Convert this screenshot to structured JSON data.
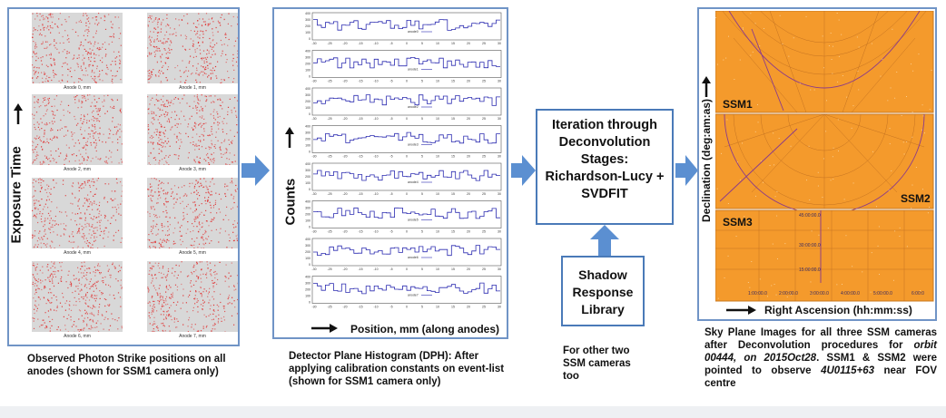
{
  "panel1": {
    "ylabel": "Exposure Time",
    "anodes": [
      "Anode 0, mm",
      "Anode 1, mm",
      "Anode 2, mm",
      "Anode 3, mm",
      "Anode 4, mm",
      "Anode 5, mm",
      "Anode 6, mm",
      "Anode 7, mm"
    ],
    "caption": "Observed Photon Strike positions on all anodes (shown for SSM1 camera only)"
  },
  "panel2": {
    "ylabel": "Counts",
    "xlabel": "Position, mm (along anodes)",
    "legends": [
      "anode0",
      "anode1",
      "anode2",
      "anode3",
      "anode4",
      "anode5",
      "anode6",
      "anode7"
    ],
    "yticks": [
      "400",
      "300",
      "200",
      "100",
      "0"
    ],
    "xticks": [
      "-30",
      "-25",
      "-20",
      "-15",
      "-10",
      "-5",
      "0",
      "5",
      "10",
      "15",
      "20",
      "25",
      "30"
    ],
    "caption": "Detector Plane Histogram (DPH): After applying calibration constants on event-list (shown for SSM1 camera only)"
  },
  "process": {
    "box_text": "Iteration through Deconvolution Stages: Richardson-Lucy + SVDFIT",
    "library_text": "Shadow Response Library",
    "note": "For other two SSM cameras too"
  },
  "panel3": {
    "ylabel": "Declination (deg:am:as)",
    "xlabel": "Right Ascension (hh:mm:ss)",
    "ssm1": "SSM1",
    "ssm2": "SSM2",
    "ssm3": "SSM3",
    "ssm3_dec_labels": [
      "45:00:00.0",
      "30:00:00.0",
      "15:00:00.0"
    ],
    "ssm3_ra_labels": [
      "1:00:00.0",
      "2:00:00.0",
      "3:00:00.0",
      "4:00:00.0",
      "5:00:00.0",
      "6:00:0"
    ],
    "caption_parts": {
      "p1": "Sky Plane Images for all three SSM cameras after Deconvolution procedures for ",
      "p2": "orbit 00444, on 2015Oct28",
      "p3": ". SSM1 & SSM2 were pointed to observe ",
      "p4": "4U0115+63",
      "p5": " near FOV centre"
    }
  },
  "colors": {
    "panel_border": "#7094c6",
    "arrow": "#5b8fd1",
    "sky": "#f49a2c",
    "dots": "#e03030"
  }
}
